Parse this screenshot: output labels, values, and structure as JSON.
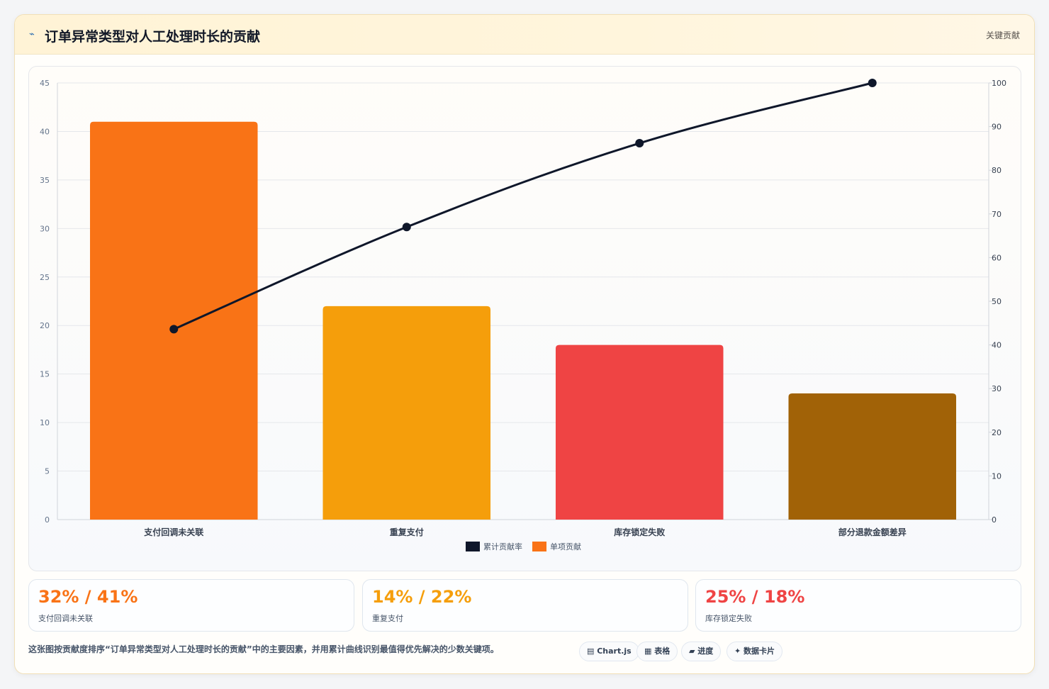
{
  "header": {
    "icon": "lightning-icon",
    "title": "订单异常类型对人工处理时长的贡献",
    "tag": "关键贡献"
  },
  "colors": {
    "bar1": "#f97316",
    "bar2": "#f59e0b",
    "bar3": "#ef4444",
    "bar4": "#a16207",
    "line": "#0f172a"
  },
  "chart_data": {
    "type": "bar",
    "categories": [
      "支付回调未关联",
      "重复支付",
      "库存锁定失败",
      "部分退款金额差异"
    ],
    "series": [
      {
        "name": "单项贡献",
        "type": "bar",
        "axis": "left",
        "values": [
          41,
          22,
          18,
          13
        ]
      },
      {
        "name": "累计贡献率",
        "type": "line",
        "axis": "right",
        "values": [
          43.6,
          67,
          86.2,
          100
        ]
      }
    ],
    "y_left": {
      "min": 0,
      "max": 45,
      "ticks": [
        0,
        5,
        10,
        15,
        20,
        25,
        30,
        35,
        40,
        45
      ]
    },
    "y_right": {
      "min": 0,
      "max": 100,
      "ticks": [
        0,
        10,
        20,
        30,
        40,
        50,
        60,
        70,
        80,
        90,
        100
      ]
    },
    "legend": {
      "placement": "bottom",
      "items": [
        "累计贡献率",
        "单项贡献"
      ]
    },
    "grid": true
  },
  "stats": [
    {
      "value": "32% / 41%",
      "label": "支付回调未关联",
      "color": "#f97316"
    },
    {
      "value": "14% / 22%",
      "label": "重复支付",
      "color": "#f59e0b"
    },
    {
      "value": "25% / 18%",
      "label": "库存锁定失败",
      "color": "#ef4444"
    }
  ],
  "footer": {
    "note": "这张图按贡献度排序“订单异常类型对人工处理时长的贡献”中的主要因素，并用累计曲线识别最值得优先解决的少数关键项。",
    "chips": [
      "▤ Chart.js",
      "▦ 表格",
      "▰ 进度",
      "✦ 数据卡片"
    ]
  }
}
